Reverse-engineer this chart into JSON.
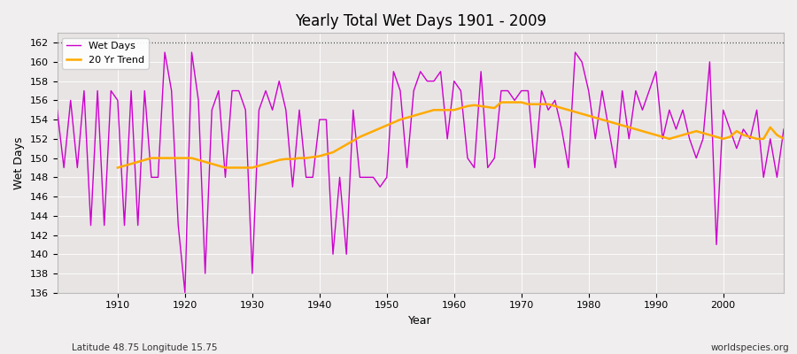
{
  "title": "Yearly Total Wet Days 1901 - 2009",
  "xlabel": "Year",
  "ylabel": "Wet Days",
  "fig_bg_color": "#f0eeee",
  "plot_bg_color": "#e8e4e4",
  "line_color": "#cc00cc",
  "trend_color": "#ffaa00",
  "ylim": [
    136,
    163
  ],
  "xlim": [
    1901,
    2009
  ],
  "yticks": [
    136,
    138,
    140,
    142,
    144,
    146,
    148,
    150,
    152,
    154,
    156,
    158,
    160,
    162
  ],
  "xticks": [
    1910,
    1920,
    1930,
    1940,
    1950,
    1960,
    1970,
    1980,
    1990,
    2000
  ],
  "hline_y": 162,
  "legend_labels": [
    "Wet Days",
    "20 Yr Trend"
  ],
  "footer_left": "Latitude 48.75 Longitude 15.75",
  "footer_right": "worldspecies.org",
  "wet_days": [
    155,
    149,
    156,
    149,
    157,
    143,
    157,
    143,
    157,
    156,
    143,
    157,
    143,
    157,
    148,
    148,
    161,
    157,
    143,
    136,
    161,
    156,
    138,
    155,
    157,
    148,
    157,
    157,
    155,
    138,
    155,
    157,
    155,
    158,
    155,
    147,
    155,
    148,
    148,
    154,
    154,
    140,
    148,
    140,
    155,
    148,
    148,
    148,
    147,
    148,
    159,
    157,
    149,
    157,
    159,
    158,
    158,
    159,
    152,
    158,
    157,
    150,
    149,
    159,
    149,
    150,
    157,
    157,
    156,
    157,
    157,
    149,
    157,
    155,
    156,
    153,
    149,
    161,
    160,
    157,
    152,
    157,
    153,
    149,
    157,
    152,
    157,
    155,
    157,
    159,
    152,
    155,
    153,
    155,
    152,
    150,
    152,
    160,
    141,
    155,
    153,
    151,
    153,
    152,
    155,
    148,
    152,
    148,
    153
  ],
  "trend_start_year": 1910,
  "trend_data": [
    149.0,
    149.2,
    149.4,
    149.6,
    149.8,
    150.0,
    150.0,
    150.0,
    150.0,
    150.0,
    150.0,
    150.0,
    149.8,
    149.6,
    149.4,
    149.2,
    149.0,
    149.0,
    149.0,
    149.0,
    149.0,
    149.2,
    149.4,
    149.6,
    149.8,
    149.9,
    149.9,
    150.0,
    150.0,
    150.1,
    150.2,
    150.4,
    150.6,
    151.0,
    151.4,
    151.8,
    152.2,
    152.5,
    152.8,
    153.1,
    153.4,
    153.7,
    154.0,
    154.2,
    154.4,
    154.6,
    154.8,
    155.0,
    155.0,
    155.0,
    155.0,
    155.2,
    155.4,
    155.5,
    155.4,
    155.3,
    155.2,
    155.8,
    155.8,
    155.8,
    155.8,
    155.6,
    155.6,
    155.6,
    155.6,
    155.4,
    155.2,
    155.0,
    154.8,
    154.6,
    154.4,
    154.2,
    154.0,
    153.8,
    153.6,
    153.4,
    153.2,
    153.0,
    152.8,
    152.6,
    152.4,
    152.2,
    152.0,
    152.2,
    152.4,
    152.6,
    152.8,
    152.6,
    152.4,
    152.2,
    152.0,
    152.2,
    152.8,
    152.4,
    152.2,
    152.0,
    152.0,
    153.2,
    152.4,
    152.0
  ]
}
